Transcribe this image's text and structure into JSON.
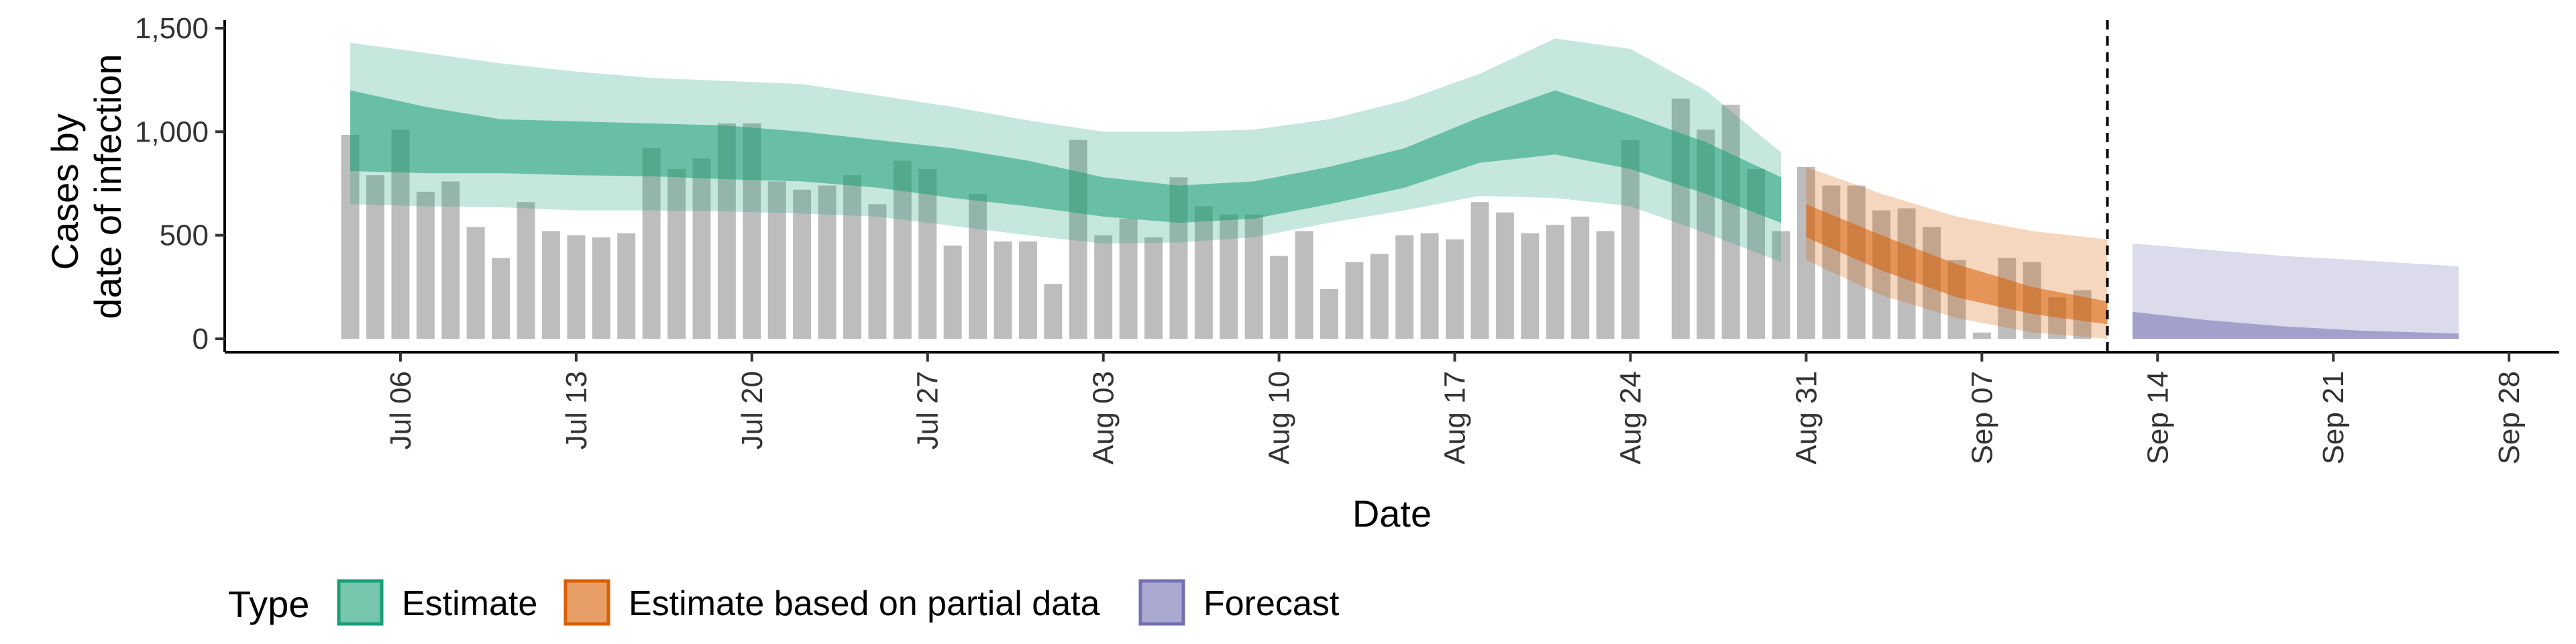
{
  "chart_data": {
    "type": "bar",
    "xlabel": "Date",
    "ylabel_line1": "Cases by",
    "ylabel_line2": "date of infection",
    "ylim": [
      0,
      1550
    ],
    "y_ticks": [
      0,
      500,
      1000,
      1500
    ],
    "y_tick_labels": [
      "0",
      "500",
      "1,000",
      "1,500"
    ],
    "x_ticks": [
      "2020-07-06",
      "2020-07-13",
      "2020-07-20",
      "2020-07-27",
      "2020-08-03",
      "2020-08-10",
      "2020-08-17",
      "2020-08-24",
      "2020-08-31",
      "2020-09-07",
      "2020-09-14",
      "2020-09-21",
      "2020-09-28"
    ],
    "x_tick_labels": [
      "Jul 06",
      "Jul 13",
      "Jul 20",
      "Jul 27",
      "Aug 03",
      "Aug 10",
      "Aug 17",
      "Aug 24",
      "Aug 31",
      "Sep 07",
      "Sep 14",
      "Sep 21",
      "Sep 28"
    ],
    "x_range": [
      "2020-06-29",
      "2020-09-30"
    ],
    "vline_date": "2020-09-12",
    "bar_color": "#bdbdbd",
    "bars": {
      "start_date": "2020-07-04",
      "values": [
        985,
        790,
        1010,
        710,
        760,
        540,
        390,
        660,
        520,
        500,
        490,
        510,
        920,
        820,
        870,
        1040,
        1040,
        760,
        720,
        740,
        790,
        650,
        860,
        820,
        450,
        700,
        470,
        470,
        265,
        960,
        500,
        580,
        490,
        780,
        640,
        600,
        600,
        400,
        520,
        240,
        370,
        410,
        500,
        510,
        480,
        660,
        610,
        510,
        550,
        590,
        520,
        960,
        0,
        1160,
        1010,
        1130,
        820,
        520,
        830,
        740,
        740,
        620,
        630,
        540,
        380,
        30,
        390,
        370,
        200,
        235
      ]
    },
    "series": [
      {
        "name": "Estimate",
        "color": "#1b9e77",
        "dates": [
          "2020-07-04",
          "2020-07-07",
          "2020-07-10",
          "2020-07-13",
          "2020-07-16",
          "2020-07-19",
          "2020-07-22",
          "2020-07-25",
          "2020-07-28",
          "2020-07-31",
          "2020-08-03",
          "2020-08-06",
          "2020-08-09",
          "2020-08-12",
          "2020-08-15",
          "2020-08-18",
          "2020-08-21",
          "2020-08-24",
          "2020-08-27",
          "2020-08-30"
        ],
        "outer_upper": [
          1430,
          1380,
          1330,
          1290,
          1260,
          1245,
          1230,
          1175,
          1120,
          1055,
          1000,
          1000,
          1010,
          1060,
          1150,
          1280,
          1450,
          1400,
          1200,
          900
        ],
        "outer_lower": [
          650,
          640,
          635,
          620,
          620,
          615,
          605,
          590,
          545,
          500,
          460,
          465,
          490,
          560,
          620,
          690,
          680,
          640,
          510,
          370
        ],
        "inner_upper": [
          1200,
          1120,
          1060,
          1050,
          1040,
          1030,
          1000,
          960,
          920,
          860,
          780,
          740,
          760,
          830,
          920,
          1070,
          1200,
          1080,
          950,
          780
        ],
        "inner_lower": [
          810,
          800,
          800,
          790,
          785,
          770,
          760,
          730,
          680,
          640,
          590,
          560,
          580,
          650,
          730,
          850,
          890,
          820,
          700,
          560
        ]
      },
      {
        "name": "Estimate based on partial data",
        "color": "#d95f02",
        "dates": [
          "2020-08-31",
          "2020-09-03",
          "2020-09-06",
          "2020-09-09",
          "2020-09-12"
        ],
        "outer_upper": [
          830,
          700,
          590,
          520,
          480
        ],
        "outer_lower": [
          380,
          210,
          100,
          30,
          0
        ],
        "inner_upper": [
          650,
          500,
          360,
          250,
          180
        ],
        "inner_lower": [
          490,
          330,
          200,
          120,
          70
        ]
      },
      {
        "name": "Forecast",
        "color": "#7570b3",
        "dates": [
          "2020-09-13",
          "2020-09-16",
          "2020-09-19",
          "2020-09-22",
          "2020-09-26"
        ],
        "outer_upper": [
          460,
          430,
          400,
          380,
          350
        ],
        "outer_lower": [
          0,
          0,
          0,
          0,
          0
        ],
        "inner_upper": [
          130,
          90,
          60,
          40,
          25
        ],
        "inner_lower": [
          0,
          0,
          0,
          0,
          0
        ]
      }
    ],
    "legend": {
      "position": "bottom",
      "title": "Type",
      "items": [
        "Estimate",
        "Estimate based on partial data",
        "Forecast"
      ]
    }
  }
}
